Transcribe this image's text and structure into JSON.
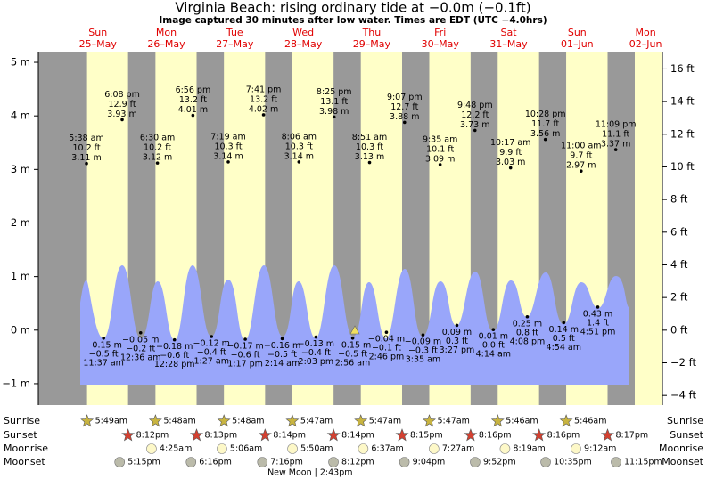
{
  "header": {
    "title": "Virginia Beach: rising  ordinary tide at −0.0m (−0.1ft)",
    "subtitle": "Image captured 30 minutes after low water. Times are EDT (UTC −4.0hrs)"
  },
  "chart_data": {
    "type": "tide",
    "ylim": [
      -1.4,
      5.2
    ],
    "yticks": [
      {
        "value": -1,
        "label": "−1 m"
      },
      {
        "value": 0,
        "label": "0 m"
      },
      {
        "value": 1,
        "label": "1 m"
      },
      {
        "value": 2,
        "label": "2 m"
      },
      {
        "value": 3,
        "label": "3 m"
      },
      {
        "value": 4,
        "label": "4 m"
      },
      {
        "value": 5,
        "label": "5 m"
      }
    ],
    "y2lim": [
      -4.59,
      17.06
    ],
    "y2ticks": [
      {
        "value": -4,
        "label": "−4 ft"
      },
      {
        "value": -2,
        "label": "−2 ft"
      },
      {
        "value": 0,
        "label": "0 ft"
      },
      {
        "value": 2,
        "label": "2 ft"
      },
      {
        "value": 4,
        "label": "4 ft"
      },
      {
        "value": 6,
        "label": "6 ft"
      },
      {
        "value": 8,
        "label": "8 ft"
      },
      {
        "value": 10,
        "label": "10 ft"
      },
      {
        "value": 12,
        "label": "12 ft"
      },
      {
        "value": 14,
        "label": "14 ft"
      },
      {
        "value": 16,
        "label": "16 ft"
      }
    ],
    "rows": {
      "sunrise": "Sunrise",
      "sunset": "Sunset",
      "moonrise": "Moonrise",
      "moonset": "Moonset"
    },
    "days": [
      {
        "name": "Sun",
        "date": "25–May",
        "sunrise": "5:49am",
        "sunset": "8:12pm",
        "moonrise": null,
        "moonset": "5:15pm",
        "tides": [
          {
            "type": "high",
            "time": "5:38 am",
            "value": 3.11,
            "value_label": "3.11 m",
            "ft": "10.2 ft"
          },
          {
            "type": "low",
            "time": "11:37 am",
            "value": -0.15,
            "value_label": "−0.15 m",
            "ft": "−0.5 ft"
          },
          {
            "type": "high",
            "time": "6:08 pm",
            "value": 3.93,
            "value_label": "3.93 m",
            "ft": "12.9 ft"
          }
        ]
      },
      {
        "name": "Mon",
        "date": "26–May",
        "sunrise": "5:48am",
        "sunset": "8:13pm",
        "moonrise": "4:25am",
        "moonset": "6:16pm",
        "tides": [
          {
            "type": "low",
            "time": "12:36 am",
            "value": -0.05,
            "value_label": "−0.05 m",
            "ft": "−0.2 ft"
          },
          {
            "type": "high",
            "time": "6:30 am",
            "value": 3.12,
            "value_label": "3.12 m",
            "ft": "10.2 ft"
          },
          {
            "type": "low",
            "time": "12:28 pm",
            "value": -0.18,
            "value_label": "−0.18 m",
            "ft": "−0.6 ft"
          },
          {
            "type": "high",
            "time": "6:56 pm",
            "value": 4.01,
            "value_label": "4.01 m",
            "ft": "13.2 ft"
          }
        ]
      },
      {
        "name": "Tue",
        "date": "27–May",
        "sunrise": "5:48am",
        "sunset": "8:14pm",
        "moonrise": "5:06am",
        "moonset": "7:16pm",
        "tides": [
          {
            "type": "low",
            "time": "1:27 am",
            "value": -0.12,
            "value_label": "−0.12 m",
            "ft": "−0.4 ft"
          },
          {
            "type": "high",
            "time": "7:19 am",
            "value": 3.14,
            "value_label": "3.14 m",
            "ft": "10.3 ft"
          },
          {
            "type": "low",
            "time": "1:17 pm",
            "value": -0.17,
            "value_label": "−0.17 m",
            "ft": "−0.6 ft"
          },
          {
            "type": "high",
            "time": "7:41 pm",
            "value": 4.02,
            "value_label": "4.02 m",
            "ft": "13.2 ft"
          }
        ]
      },
      {
        "name": "Wed",
        "date": "28–May",
        "sunrise": "5:47am",
        "sunset": "8:14pm",
        "moonrise": "5:50am",
        "moonset": "8:12pm",
        "moon_phase": "New Moon | 2:43pm",
        "tides": [
          {
            "type": "low",
            "time": "2:14 am",
            "value": -0.16,
            "value_label": "−0.16 m",
            "ft": "−0.5 ft"
          },
          {
            "type": "high",
            "time": "8:06 am",
            "value": 3.14,
            "value_label": "3.14 m",
            "ft": "10.3 ft"
          },
          {
            "type": "low",
            "time": "2:03 pm",
            "value": -0.13,
            "value_label": "−0.13 m",
            "ft": "−0.4 ft"
          },
          {
            "type": "high",
            "time": "8:25 pm",
            "value": 3.98,
            "value_label": "3.98 m",
            "ft": "13.1 ft"
          }
        ]
      },
      {
        "name": "Thu",
        "date": "29–May",
        "sunrise": "5:47am",
        "sunset": "8:15pm",
        "moonrise": "6:37am",
        "moonset": "9:04pm",
        "tides": [
          {
            "type": "low",
            "time": "2:56 am",
            "value": -0.15,
            "value_label": "−0.15 m",
            "ft": "−0.5 ft"
          },
          {
            "type": "high",
            "time": "8:51 am",
            "value": 3.13,
            "value_label": "3.13 m",
            "ft": "10.3 ft"
          },
          {
            "type": "low",
            "time": "2:46 pm",
            "value": -0.04,
            "value_label": "−0.04 m",
            "ft": "−0.1 ft"
          },
          {
            "type": "high",
            "time": "9:07 pm",
            "value": 3.88,
            "value_label": "3.88 m",
            "ft": "12.7 ft"
          }
        ]
      },
      {
        "name": "Fri",
        "date": "30–May",
        "sunrise": "5:47am",
        "sunset": "8:16pm",
        "moonrise": "7:27am",
        "moonset": "9:52pm",
        "tides": [
          {
            "type": "low",
            "time": "3:35 am",
            "value": -0.09,
            "value_label": "−0.09 m",
            "ft": "−0.3 ft"
          },
          {
            "type": "high",
            "time": "9:35 am",
            "value": 3.09,
            "value_label": "3.09 m",
            "ft": "10.1 ft"
          },
          {
            "type": "low",
            "time": "3:27 pm",
            "value": 0.09,
            "value_label": "0.09 m",
            "ft": "0.3 ft"
          },
          {
            "type": "high",
            "time": "9:48 pm",
            "value": 3.73,
            "value_label": "3.73 m",
            "ft": "12.2 ft"
          }
        ]
      },
      {
        "name": "Sat",
        "date": "31–May",
        "sunrise": "5:46am",
        "sunset": "8:16pm",
        "moonrise": "8:19am",
        "moonset": "10:35pm",
        "tides": [
          {
            "type": "low",
            "time": "4:14 am",
            "value": 0.01,
            "value_label": "0.01 m",
            "ft": "0.0 ft"
          },
          {
            "type": "high",
            "time": "10:17 am",
            "value": 3.03,
            "value_label": "3.03 m",
            "ft": "9.9 ft"
          },
          {
            "type": "low",
            "time": "4:08 pm",
            "value": 0.25,
            "value_label": "0.25 m",
            "ft": "0.8 ft"
          },
          {
            "type": "high",
            "time": "10:28 pm",
            "value": 3.56,
            "value_label": "3.56 m",
            "ft": "11.7 ft"
          }
        ]
      },
      {
        "name": "Sun",
        "date": "01–Jun",
        "sunrise": "5:46am",
        "sunset": "8:17pm",
        "moonrise": "9:12am",
        "moonset": "11:15pm",
        "tides": [
          {
            "type": "low",
            "time": "4:54 am",
            "value": 0.14,
            "value_label": "0.14 m",
            "ft": "0.5 ft"
          },
          {
            "type": "high",
            "time": "11:00 am",
            "value": 2.97,
            "value_label": "2.97 m",
            "ft": "9.7 ft"
          },
          {
            "type": "low",
            "time": "4:51 pm",
            "value": 0.43,
            "value_label": "0.43 m",
            "ft": "1.4 ft"
          },
          {
            "type": "high",
            "time": "11:09 pm",
            "value": 3.37,
            "value_label": "3.37 m",
            "ft": "11.1 ft"
          }
        ]
      },
      {
        "name": "Mon",
        "date": "02–Jun",
        "sunrise": null,
        "sunset": null,
        "moonrise": null,
        "moonset": null,
        "tides": []
      }
    ]
  }
}
